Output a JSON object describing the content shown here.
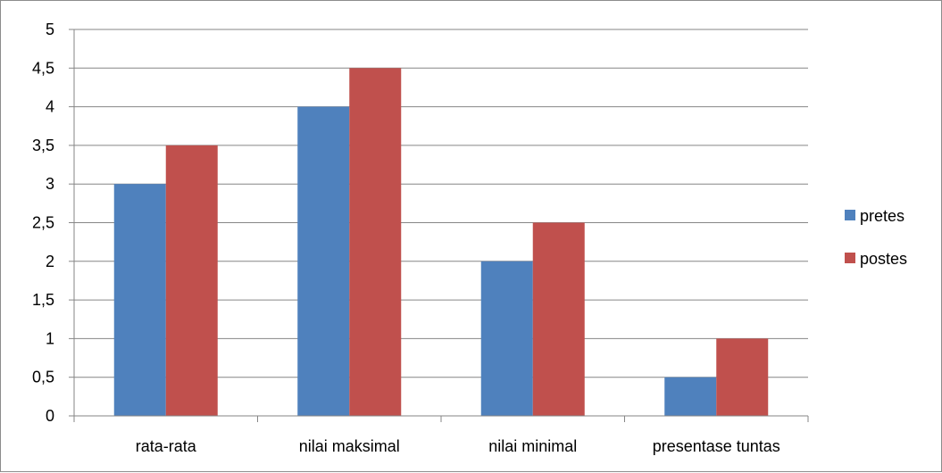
{
  "chart_data": {
    "type": "bar",
    "categories": [
      "rata-rata",
      "nilai maksimal",
      "nilai minimal",
      "presentase tuntas"
    ],
    "series": [
      {
        "name": "pretes",
        "values": [
          3,
          4,
          2,
          0.5
        ],
        "color": "#4f81bd"
      },
      {
        "name": "postes",
        "values": [
          3.5,
          4.5,
          2.5,
          1
        ],
        "color": "#c0504d"
      }
    ],
    "y_ticks": [
      "0",
      "0,5",
      "1",
      "1,5",
      "2",
      "2,5",
      "3",
      "3,5",
      "4",
      "4,5",
      "5"
    ],
    "ylim": [
      0,
      5
    ],
    "y_step": 0.5,
    "grid": true,
    "legend_position": "right",
    "title": "",
    "xlabel": "",
    "ylabel": ""
  }
}
